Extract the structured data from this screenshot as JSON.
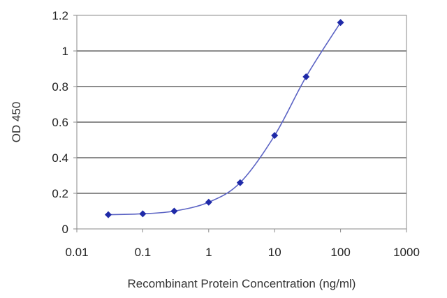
{
  "chart_data": {
    "type": "scatter",
    "title": "",
    "xlabel": "Recombinant Protein Concentration (ng/ml)",
    "ylabel": "OD 450",
    "x_scale": "log",
    "xlim": [
      0.01,
      1000
    ],
    "ylim": [
      0,
      1.2
    ],
    "x_ticks": [
      {
        "value": 0.01,
        "label": "0.01"
      },
      {
        "value": 0.1,
        "label": "0.1"
      },
      {
        "value": 1,
        "label": "1"
      },
      {
        "value": 10,
        "label": "10"
      },
      {
        "value": 100,
        "label": "100"
      },
      {
        "value": 1000,
        "label": "1000"
      }
    ],
    "y_ticks": [
      {
        "value": 0,
        "label": "0"
      },
      {
        "value": 0.2,
        "label": "0.2"
      },
      {
        "value": 0.4,
        "label": "0.4"
      },
      {
        "value": 0.6,
        "label": "0.6"
      },
      {
        "value": 0.8,
        "label": "0.8"
      },
      {
        "value": 1.0,
        "label": "1"
      },
      {
        "value": 1.2,
        "label": "1.2"
      }
    ],
    "grid": "horizontal",
    "legend": "none",
    "series": [
      {
        "x": [
          0.03,
          0.1,
          0.3,
          1,
          3,
          10,
          30,
          100
        ],
        "y": [
          0.08,
          0.085,
          0.1,
          0.15,
          0.26,
          0.525,
          0.855,
          1.16
        ],
        "color": "#1f2aa8",
        "marker": "diamond",
        "line": "smooth"
      }
    ]
  }
}
